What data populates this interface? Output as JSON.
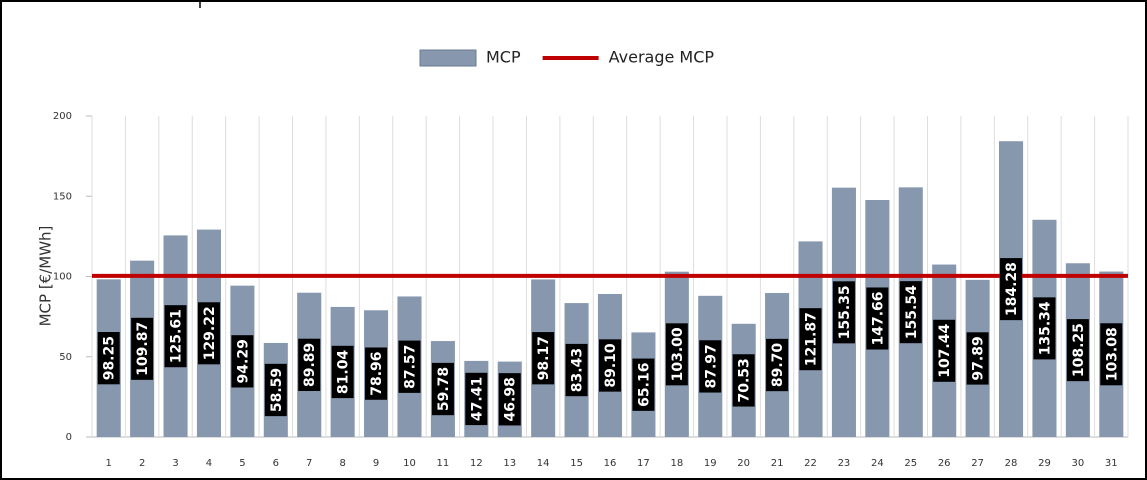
{
  "chart_data": {
    "type": "bar",
    "y_label": "MCP [€/MWh]",
    "categories": [
      "1",
      "2",
      "3",
      "4",
      "5",
      "6",
      "7",
      "8",
      "9",
      "10",
      "11",
      "12",
      "13",
      "14",
      "15",
      "16",
      "17",
      "18",
      "19",
      "20",
      "21",
      "22",
      "23",
      "24",
      "25",
      "26",
      "27",
      "28",
      "29",
      "30",
      "31"
    ],
    "series": [
      {
        "name": "MCP",
        "color": "#8797ae",
        "values": [
          98.25,
          109.87,
          125.61,
          129.22,
          94.29,
          58.59,
          89.89,
          81.04,
          78.96,
          87.57,
          59.78,
          47.41,
          46.98,
          98.17,
          83.43,
          89.1,
          65.16,
          103,
          87.97,
          70.53,
          89.7,
          121.87,
          155.35,
          147.66,
          155.54,
          107.44,
          97.89,
          184.28,
          135.34,
          108.25,
          103.08
        ],
        "value_labels": [
          "98.25",
          "109.87",
          "125.61",
          "129.22",
          "94.29",
          "58.59",
          "89.89",
          "81.04",
          "78.96",
          "87.57",
          "59.78",
          "47.41",
          "46.98",
          "98.17",
          "83.43",
          "89.10",
          "65.16",
          "103.00",
          "87.97",
          "70.53",
          "89.70",
          "121.87",
          "155.35",
          "147.66",
          "155.54",
          "107.44",
          "97.89",
          "184.28",
          "135.34",
          "108.25",
          "103.08"
        ]
      },
      {
        "name": "Average MCP",
        "color": "#c00000",
        "type": "hline",
        "value": 100.36
      }
    ],
    "ylim": [
      0,
      200
    ],
    "yticks": [
      0,
      50,
      100,
      150,
      200
    ],
    "grid": true
  }
}
